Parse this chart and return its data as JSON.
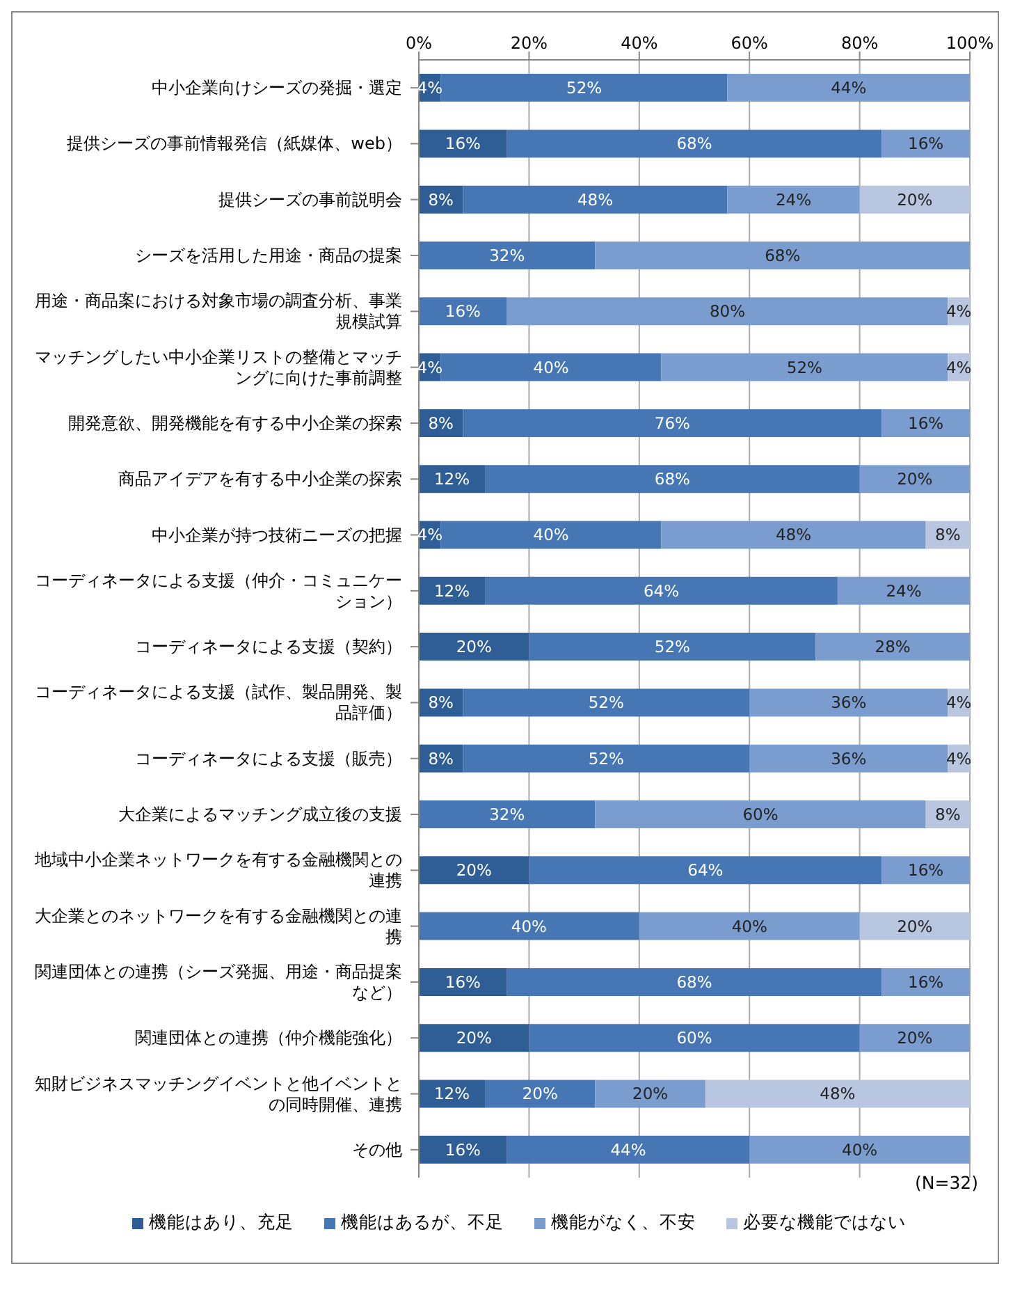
{
  "chart_data": {
    "type": "bar",
    "orientation": "horizontal",
    "stacked": true,
    "categories": [
      "中小企業向けシーズの発掘・選定",
      "提供シーズの事前情報発信（紙媒体、web）",
      "提供シーズの事前説明会",
      "シーズを活用した用途・商品の提案",
      "用途・商品案における対象市場の調査分析、事業規模試算",
      "マッチングしたい中小企業リストの整備とマッチングに向けた事前調整",
      "開発意欲、開発機能を有する中小企業の探索",
      "商品アイデアを有する中小企業の探索",
      "中小企業が持つ技術ニーズの把握",
      "コーディネータによる支援（仲介・コミュニケーション）",
      "コーディネータによる支援（契約）",
      "コーディネータによる支援（試作、製品開発、製品評価）",
      "コーディネータによる支援（販売）",
      "大企業によるマッチング成立後の支援",
      "地域中小企業ネットワークを有する金融機関との連携",
      "大企業とのネットワークを有する金融機関との連携",
      "関連団体との連携（シーズ発掘、用途・商品提案など）",
      "関連団体との連携（仲介機能強化）",
      "知財ビジネスマッチングイベントと他イベントとの同時開催、連携",
      "その他"
    ],
    "series": [
      {
        "name": "機能はあり、充足",
        "color": "#2f5d95",
        "values": [
          4,
          16,
          8,
          null,
          null,
          4,
          8,
          12,
          4,
          12,
          20,
          8,
          8,
          null,
          20,
          null,
          16,
          20,
          12,
          16
        ],
        "value_labels": [
          "4%",
          "16%",
          "8%",
          null,
          null,
          "4%",
          "8%",
          "12%",
          "4%",
          "12%",
          "20%",
          "8%",
          "8%",
          null,
          "20%",
          null,
          "16%",
          "20%",
          "12%",
          "16%"
        ]
      },
      {
        "name": "機能はあるが、不足",
        "color": "#4677b4",
        "values": [
          52,
          68,
          48,
          32,
          16,
          40,
          76,
          68,
          40,
          64,
          52,
          52,
          52,
          32,
          64,
          40,
          68,
          60,
          20,
          44
        ],
        "value_labels": [
          "52%",
          "68%",
          "48%",
          "32%",
          "16%",
          "40%",
          "76%",
          "68%",
          "40%",
          "64%",
          "52%",
          "52%",
          "52%",
          "32%",
          "64%",
          "40%",
          "68%",
          "60%",
          "20%",
          "44%"
        ]
      },
      {
        "name": "機能がなく、不安",
        "color": "#7b9cce",
        "values": [
          44,
          16,
          24,
          68,
          80,
          52,
          16,
          20,
          48,
          24,
          28,
          36,
          36,
          60,
          16,
          40,
          16,
          20,
          20,
          40
        ],
        "value_labels": [
          "44%",
          "16%",
          "24%",
          "68%",
          "80%",
          "52%",
          "16%",
          "20%",
          "48%",
          "24%",
          "28%",
          "36%",
          "36%",
          "60%",
          "16%",
          "40%",
          "16%",
          "20%",
          "20%",
          "40%"
        ]
      },
      {
        "name": "必要な機能ではない",
        "color": "#b8c6e0",
        "values": [
          null,
          null,
          20,
          null,
          4,
          4,
          null,
          null,
          8,
          null,
          null,
          4,
          4,
          8,
          null,
          20,
          null,
          null,
          48,
          null
        ],
        "value_labels": [
          null,
          null,
          "20%",
          null,
          "4%",
          "4%",
          null,
          null,
          "8%",
          null,
          null,
          "4%",
          "4%",
          "8%",
          null,
          "20%",
          null,
          null,
          "48%",
          null
        ]
      }
    ],
    "xlim": [
      0,
      100
    ],
    "xticks": [
      {
        "value": 0,
        "label": "0%"
      },
      {
        "value": 20,
        "label": "20%"
      },
      {
        "value": 40,
        "label": "40%"
      },
      {
        "value": 60,
        "label": "60%"
      },
      {
        "value": 80,
        "label": "80%"
      },
      {
        "value": 100,
        "label": "100%"
      }
    ],
    "grid": "x",
    "legend": "bottom",
    "annotations": [
      "(N=32)"
    ]
  }
}
